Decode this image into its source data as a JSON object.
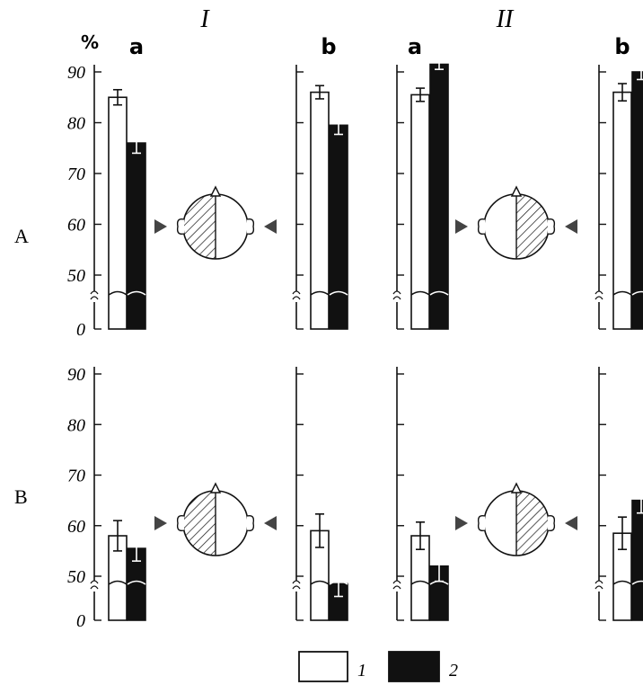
{
  "figure": {
    "groups": [
      {
        "label": "I"
      },
      {
        "label": "II"
      }
    ],
    "sub_labels": [
      "a",
      "b",
      "a",
      "b"
    ],
    "percent_label": "%",
    "row_labels": [
      "A",
      "B"
    ],
    "legend": [
      {
        "key": "1",
        "fill": "#ffffff"
      },
      {
        "key": "2",
        "fill": "#111111"
      }
    ],
    "head_icons": [
      {
        "row": "A",
        "group": "I",
        "hatched": "left"
      },
      {
        "row": "A",
        "group": "II",
        "hatched": "right"
      },
      {
        "row": "B",
        "group": "I",
        "hatched": "left"
      },
      {
        "row": "B",
        "group": "II",
        "hatched": "right"
      }
    ]
  },
  "colors": {
    "bar1": "#ffffff",
    "bar2": "#111111",
    "ink": "#111111"
  },
  "chart_data": [
    {
      "type": "bar",
      "row": "A",
      "group": "I",
      "sub": "a",
      "ylabel": "%",
      "ylim": [
        0,
        90
      ],
      "axis_break": true,
      "yticks": [
        "0",
        "50",
        "60",
        "70",
        "80",
        "90"
      ],
      "series": [
        {
          "name": "1",
          "value": 85,
          "error": 1.5
        },
        {
          "name": "2",
          "value": 76,
          "error": 2
        }
      ]
    },
    {
      "type": "bar",
      "row": "A",
      "group": "I",
      "sub": "b",
      "ylim": [
        0,
        90
      ],
      "axis_break": true,
      "series": [
        {
          "name": "1",
          "value": 86,
          "error": 1.3
        },
        {
          "name": "2",
          "value": 79.5,
          "error": 1.8
        }
      ]
    },
    {
      "type": "bar",
      "row": "A",
      "group": "II",
      "sub": "a",
      "ylim": [
        0,
        90
      ],
      "axis_break": true,
      "series": [
        {
          "name": "1",
          "value": 85.5,
          "error": 1.3
        },
        {
          "name": "2",
          "value": 91.5,
          "error": 1
        }
      ]
    },
    {
      "type": "bar",
      "row": "A",
      "group": "II",
      "sub": "b",
      "ylim": [
        0,
        90
      ],
      "axis_break": true,
      "series": [
        {
          "name": "1",
          "value": 86,
          "error": 1.7
        },
        {
          "name": "2",
          "value": 90,
          "error": 1.5
        }
      ]
    },
    {
      "type": "bar",
      "row": "B",
      "group": "I",
      "sub": "a",
      "ylim": [
        0,
        90
      ],
      "axis_break": true,
      "yticks": [
        "0",
        "50",
        "60",
        "70",
        "80",
        "90"
      ],
      "series": [
        {
          "name": "1",
          "value": 58,
          "error": 3
        },
        {
          "name": "2",
          "value": 55.5,
          "error": 2.5
        }
      ]
    },
    {
      "type": "bar",
      "row": "B",
      "group": "I",
      "sub": "b",
      "ylim": [
        0,
        90
      ],
      "axis_break": true,
      "series": [
        {
          "name": "1",
          "value": 59,
          "error": 3.3
        },
        {
          "name": "2",
          "value": 48.5,
          "error": 2.5
        }
      ]
    },
    {
      "type": "bar",
      "row": "B",
      "group": "II",
      "sub": "a",
      "ylim": [
        0,
        90
      ],
      "axis_break": true,
      "series": [
        {
          "name": "1",
          "value": 58,
          "error": 2.7
        },
        {
          "name": "2",
          "value": 52,
          "error": 3
        }
      ]
    },
    {
      "type": "bar",
      "row": "B",
      "group": "II",
      "sub": "b",
      "ylim": [
        0,
        90
      ],
      "axis_break": true,
      "series": [
        {
          "name": "1",
          "value": 58.5,
          "error": 3.2
        },
        {
          "name": "2",
          "value": 65,
          "error": 2.5
        }
      ]
    }
  ]
}
